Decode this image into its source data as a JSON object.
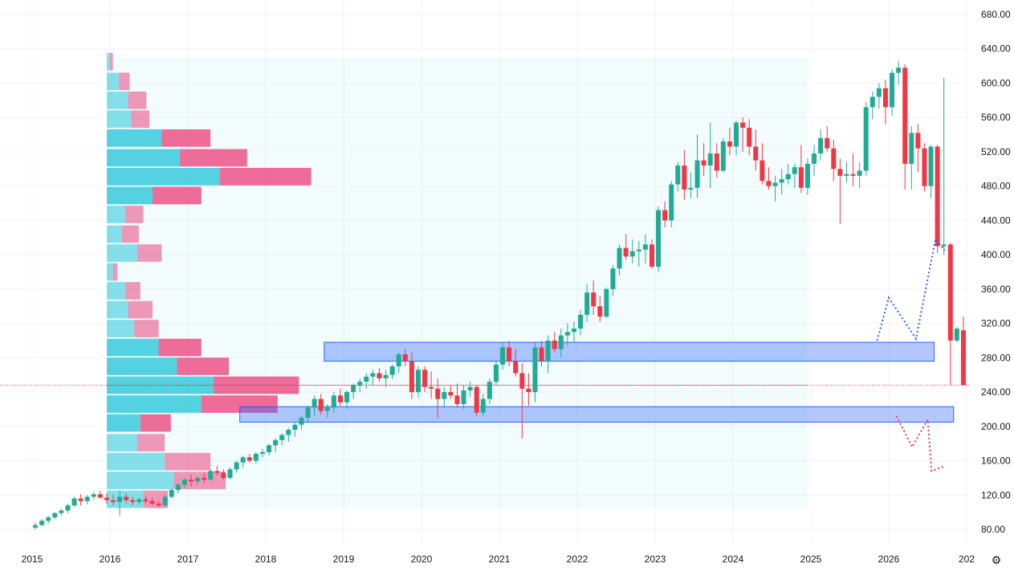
{
  "chart_data": {
    "type": "candlestick",
    "interval": "monthly",
    "x_axis": {
      "ticks": [
        "2015",
        "2016",
        "2017",
        "2018",
        "2019",
        "2020",
        "2021",
        "2022",
        "2023",
        "2024",
        "2025",
        "2026",
        "202"
      ]
    },
    "y_axis": {
      "range": [
        60,
        690
      ],
      "ticks": [
        "80.00",
        "120.00",
        "160.00",
        "200.00",
        "240.00",
        "280.00",
        "320.00",
        "360.00",
        "400.00",
        "440.00",
        "480.00",
        "520.00",
        "560.00",
        "600.00",
        "640.00",
        "680.00"
      ],
      "position": "right"
    },
    "grid": true,
    "colors": {
      "up": "#22ab94",
      "down": "#f23645",
      "vp_up": "#00bcd4",
      "vp_down": "#e91e63",
      "zone": "#2962ff",
      "forecast_up": "#2962ff",
      "forecast_down": "#f23645"
    },
    "last_price": 248,
    "candles": [
      [
        "2015-01",
        82,
        88,
        80,
        85
      ],
      [
        "2015-02",
        85,
        92,
        84,
        90
      ],
      [
        "2015-03",
        90,
        96,
        87,
        94
      ],
      [
        "2015-04",
        94,
        100,
        92,
        99
      ],
      [
        "2015-05",
        99,
        104,
        96,
        102
      ],
      [
        "2015-06",
        102,
        110,
        99,
        108
      ],
      [
        "2015-07",
        108,
        118,
        106,
        116
      ],
      [
        "2015-08",
        116,
        121,
        108,
        113
      ],
      [
        "2015-09",
        113,
        120,
        109,
        118
      ],
      [
        "2015-10",
        118,
        124,
        115,
        121
      ],
      [
        "2015-11",
        121,
        125,
        116,
        117
      ],
      [
        "2015-12",
        117,
        122,
        110,
        114
      ],
      [
        "2016-01",
        114,
        120,
        108,
        112
      ],
      [
        "2016-02",
        112,
        125,
        96,
        118
      ],
      [
        "2016-03",
        118,
        122,
        110,
        114
      ],
      [
        "2016-04",
        114,
        118,
        108,
        112
      ],
      [
        "2016-05",
        112,
        117,
        109,
        115
      ],
      [
        "2016-06",
        115,
        118,
        110,
        113
      ],
      [
        "2016-07",
        113,
        117,
        108,
        110
      ],
      [
        "2016-08",
        110,
        113,
        106,
        108
      ],
      [
        "2016-09",
        108,
        120,
        107,
        118
      ],
      [
        "2016-10",
        118,
        128,
        116,
        126
      ],
      [
        "2016-11",
        126,
        134,
        122,
        132
      ],
      [
        "2016-12",
        132,
        140,
        128,
        138
      ],
      [
        "2017-01",
        138,
        144,
        130,
        136
      ],
      [
        "2017-02",
        136,
        142,
        132,
        140
      ],
      [
        "2017-03",
        140,
        146,
        134,
        138
      ],
      [
        "2017-04",
        138,
        150,
        136,
        148
      ],
      [
        "2017-05",
        148,
        154,
        143,
        146
      ],
      [
        "2017-06",
        146,
        150,
        138,
        140
      ],
      [
        "2017-07",
        140,
        152,
        138,
        150
      ],
      [
        "2017-08",
        150,
        160,
        146,
        158
      ],
      [
        "2017-09",
        158,
        166,
        152,
        164
      ],
      [
        "2017-10",
        164,
        168,
        158,
        160
      ],
      [
        "2017-11",
        160,
        170,
        157,
        168
      ],
      [
        "2017-12",
        168,
        174,
        164,
        170
      ],
      [
        "2018-01",
        170,
        180,
        166,
        178
      ],
      [
        "2018-02",
        178,
        186,
        170,
        184
      ],
      [
        "2018-03",
        184,
        192,
        178,
        190
      ],
      [
        "2018-04",
        190,
        198,
        182,
        196
      ],
      [
        "2018-05",
        196,
        204,
        188,
        202
      ],
      [
        "2018-06",
        202,
        212,
        196,
        210
      ],
      [
        "2018-07",
        210,
        224,
        204,
        222
      ],
      [
        "2018-08",
        222,
        236,
        212,
        232
      ],
      [
        "2018-09",
        232,
        238,
        214,
        218
      ],
      [
        "2018-10",
        218,
        226,
        210,
        222
      ],
      [
        "2018-11",
        222,
        240,
        216,
        236
      ],
      [
        "2018-12",
        236,
        244,
        224,
        228
      ],
      [
        "2019-01",
        228,
        242,
        220,
        240
      ],
      [
        "2019-02",
        240,
        250,
        232,
        248
      ],
      [
        "2019-03",
        248,
        256,
        240,
        252
      ],
      [
        "2019-04",
        252,
        262,
        244,
        258
      ],
      [
        "2019-05",
        258,
        266,
        248,
        262
      ],
      [
        "2019-06",
        262,
        268,
        252,
        256
      ],
      [
        "2019-07",
        256,
        266,
        246,
        260
      ],
      [
        "2019-08",
        260,
        272,
        255,
        270
      ],
      [
        "2019-09",
        270,
        286,
        262,
        284
      ],
      [
        "2019-10",
        284,
        290,
        270,
        276
      ],
      [
        "2019-11",
        276,
        286,
        232,
        240
      ],
      [
        "2019-12",
        240,
        270,
        234,
        266
      ],
      [
        "2020-01",
        266,
        270,
        240,
        246
      ],
      [
        "2020-02",
        246,
        264,
        232,
        244
      ],
      [
        "2020-03",
        244,
        256,
        210,
        232
      ],
      [
        "2020-04",
        232,
        246,
        222,
        240
      ],
      [
        "2020-05",
        240,
        248,
        232,
        236
      ],
      [
        "2020-06",
        236,
        250,
        222,
        226
      ],
      [
        "2020-07",
        226,
        248,
        220,
        242
      ],
      [
        "2020-08",
        242,
        252,
        234,
        246
      ],
      [
        "2020-09",
        246,
        248,
        212,
        216
      ],
      [
        "2020-10",
        216,
        238,
        212,
        232
      ],
      [
        "2020-11",
        232,
        256,
        226,
        252
      ],
      [
        "2020-12",
        252,
        276,
        248,
        272
      ],
      [
        "2021-01",
        272,
        298,
        266,
        292
      ],
      [
        "2021-02",
        292,
        300,
        270,
        276
      ],
      [
        "2021-03",
        276,
        290,
        258,
        262
      ],
      [
        "2021-04",
        262,
        274,
        186,
        244
      ],
      [
        "2021-05",
        244,
        262,
        224,
        240
      ],
      [
        "2021-06",
        240,
        298,
        228,
        292
      ],
      [
        "2021-07",
        292,
        300,
        270,
        276
      ],
      [
        "2021-08",
        276,
        306,
        262,
        300
      ],
      [
        "2021-09",
        300,
        310,
        286,
        290
      ],
      [
        "2021-10",
        290,
        314,
        280,
        306
      ],
      [
        "2021-11",
        306,
        320,
        294,
        310
      ],
      [
        "2021-12",
        310,
        322,
        298,
        314
      ],
      [
        "2022-01",
        314,
        336,
        306,
        330
      ],
      [
        "2022-02",
        330,
        366,
        322,
        356
      ],
      [
        "2022-03",
        356,
        370,
        330,
        340
      ],
      [
        "2022-04",
        340,
        352,
        322,
        328
      ],
      [
        "2022-05",
        328,
        362,
        326,
        360
      ],
      [
        "2022-06",
        360,
        388,
        352,
        384
      ],
      [
        "2022-07",
        384,
        412,
        376,
        408
      ],
      [
        "2022-08",
        408,
        424,
        394,
        398
      ],
      [
        "2022-09",
        398,
        418,
        390,
        404
      ],
      [
        "2022-10",
        404,
        416,
        386,
        406
      ],
      [
        "2022-11",
        406,
        424,
        390,
        412
      ],
      [
        "2022-12",
        412,
        418,
        384,
        386
      ],
      [
        "2023-01",
        386,
        456,
        380,
        452
      ],
      [
        "2023-02",
        452,
        462,
        432,
        440
      ],
      [
        "2023-03",
        440,
        486,
        432,
        482
      ],
      [
        "2023-04",
        482,
        508,
        474,
        504
      ],
      [
        "2023-05",
        504,
        522,
        464,
        476
      ],
      [
        "2023-06",
        476,
        496,
        466,
        478
      ],
      [
        "2023-07",
        478,
        540,
        466,
        510
      ],
      [
        "2023-08",
        510,
        530,
        492,
        504
      ],
      [
        "2023-09",
        504,
        554,
        478,
        518
      ],
      [
        "2023-10",
        518,
        530,
        490,
        498
      ],
      [
        "2023-11",
        498,
        536,
        496,
        532
      ],
      [
        "2023-12",
        532,
        548,
        516,
        526
      ],
      [
        "2024-01",
        526,
        556,
        516,
        554
      ],
      [
        "2024-02",
        554,
        560,
        520,
        548
      ],
      [
        "2024-03",
        548,
        558,
        516,
        526
      ],
      [
        "2024-04",
        526,
        546,
        498,
        510
      ],
      [
        "2024-05",
        510,
        530,
        482,
        486
      ],
      [
        "2024-06",
        486,
        502,
        476,
        480
      ],
      [
        "2024-07",
        480,
        492,
        462,
        484
      ],
      [
        "2024-08",
        484,
        500,
        470,
        488
      ],
      [
        "2024-09",
        488,
        506,
        482,
        494
      ],
      [
        "2024-10",
        494,
        506,
        478,
        502
      ],
      [
        "2024-11",
        502,
        528,
        472,
        478
      ],
      [
        "2024-12",
        478,
        512,
        470,
        506
      ],
      [
        "2025-01",
        506,
        528,
        492,
        518
      ],
      [
        "2025-02",
        518,
        546,
        510,
        536
      ],
      [
        "2025-03",
        536,
        550,
        520,
        524
      ],
      [
        "2025-04",
        524,
        534,
        486,
        500
      ],
      [
        "2025-05",
        500,
        512,
        436,
        492
      ],
      [
        "2025-06",
        492,
        508,
        484,
        494
      ],
      [
        "2025-07",
        494,
        518,
        480,
        492
      ],
      [
        "2025-08",
        492,
        508,
        478,
        498
      ],
      [
        "2025-09",
        498,
        578,
        492,
        572
      ],
      [
        "2025-10",
        572,
        590,
        558,
        584
      ],
      [
        "2025-11",
        584,
        600,
        570,
        594
      ],
      [
        "2025-12",
        594,
        604,
        552,
        572
      ],
      [
        "2026-01",
        572,
        616,
        562,
        612
      ],
      [
        "2026-02",
        612,
        626,
        598,
        618
      ],
      [
        "2026-03",
        618,
        622,
        476,
        506
      ],
      [
        "2026-04",
        506,
        550,
        476,
        542
      ],
      [
        "2026-05",
        542,
        552,
        496,
        524
      ],
      [
        "2026-06",
        524,
        530,
        474,
        480
      ],
      [
        "2026-07",
        480,
        528,
        466,
        526
      ],
      [
        "2026-08",
        526,
        528,
        402,
        410
      ],
      [
        "2026-09",
        410,
        606,
        400,
        412
      ],
      [
        "2026-10",
        412,
        414,
        248,
        300
      ],
      [
        "2026-11",
        300,
        316,
        298,
        314
      ],
      [
        "2026-12",
        312,
        328,
        248,
        248
      ]
    ],
    "volume_profile": [
      {
        "price": 115,
        "up": 120,
        "down": 80
      },
      {
        "price": 137,
        "up": 220,
        "down": 170
      },
      {
        "price": 159,
        "up": 190,
        "down": 150
      },
      {
        "price": 181,
        "up": 100,
        "down": 90
      },
      {
        "price": 204,
        "up": 110,
        "down": 100
      },
      {
        "price": 226,
        "up": 310,
        "down": 250
      },
      {
        "price": 248,
        "up": 350,
        "down": 280
      },
      {
        "price": 270,
        "up": 230,
        "down": 170
      },
      {
        "price": 292,
        "up": 170,
        "down": 140
      },
      {
        "price": 314,
        "up": 90,
        "down": 80
      },
      {
        "price": 336,
        "up": 70,
        "down": 80
      },
      {
        "price": 358,
        "up": 60,
        "down": 50
      },
      {
        "price": 380,
        "up": 20,
        "down": 15
      },
      {
        "price": 402,
        "up": 100,
        "down": 80
      },
      {
        "price": 424,
        "up": 50,
        "down": 55
      },
      {
        "price": 447,
        "up": 60,
        "down": 60
      },
      {
        "price": 469,
        "up": 150,
        "down": 160
      },
      {
        "price": 491,
        "up": 370,
        "down": 300
      },
      {
        "price": 513,
        "up": 240,
        "down": 220
      },
      {
        "price": 536,
        "up": 180,
        "down": 160
      },
      {
        "price": 558,
        "up": 80,
        "down": 60
      },
      {
        "price": 580,
        "up": 70,
        "down": 60
      },
      {
        "price": 602,
        "up": 40,
        "down": 35
      },
      {
        "price": 625,
        "up": 10,
        "down": 10
      }
    ],
    "zones": [
      {
        "price_low": 276,
        "price_high": 298,
        "start": "2018-10",
        "end": "2026-07"
      },
      {
        "price_low": 205,
        "price_high": 223,
        "start": "2017-09",
        "end": "2026-10"
      }
    ],
    "forecast_up": [
      [
        2025.85,
        300
      ],
      [
        2026.0,
        350
      ],
      [
        2026.35,
        302
      ],
      [
        2026.6,
        418
      ],
      [
        2026.72,
        405
      ]
    ],
    "forecast_down": [
      [
        2026.1,
        212
      ],
      [
        2026.3,
        176
      ],
      [
        2026.5,
        208
      ],
      [
        2026.55,
        148
      ],
      [
        2026.72,
        154
      ]
    ]
  }
}
